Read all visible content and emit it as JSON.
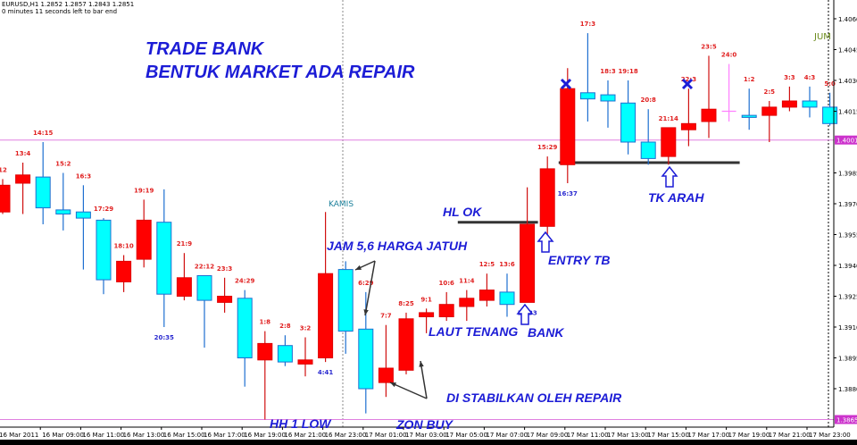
{
  "header": {
    "symbol_line": "EURUSD,H1  1.2852 1.2857 1.2843 1.2851",
    "timer_line": "0 minutes 11 seconds left to bar end"
  },
  "annotations": {
    "title1": "TRADE BANK",
    "title2": "BENTUK MARKET ADA REPAIR",
    "jam": "JAM 5,6 HARGA JATUH",
    "hl_ok": "HL OK",
    "entry_tb": "ENTRY TB",
    "laut_tenang": "LAUT TENANG",
    "bank": "BANK",
    "di_stabilkan": "DI STABILKAN OLEH REPAIR",
    "hh_low": "HH 1 LOW",
    "zon_buy": "ZON BUY",
    "tk_arah": "TK ARAH",
    "kamis": "KAMIS",
    "jum": "JUM"
  },
  "colors": {
    "up_body": "#ff0000",
    "down_body": "#00ffff",
    "down_wick": "#1e6fd0",
    "up_wick": "#d01010",
    "doji": "#ff80ff",
    "annotation": "#1c1cd6",
    "price_line": "#e080e0"
  },
  "chart_data": {
    "type": "candlestick",
    "symbol": "EURUSD",
    "timeframe": "H1",
    "ylim": [
      1.386,
      1.407
    ],
    "y_ticks": [
      "1.4060",
      "1.4045",
      "1.4030",
      "1.4015",
      "1.3985",
      "1.3970",
      "1.3955",
      "1.3940",
      "1.3925",
      "1.3910",
      "1.3895",
      "1.3880"
    ],
    "x_ticks": [
      "16 Mar 2011",
      "16 Mar 09:00",
      "16 Mar 11:00",
      "16 Mar 13:00",
      "16 Mar 15:00",
      "16 Mar 17:00",
      "16 Mar 19:00",
      "16 Mar 21:00",
      "16 Mar 23:00",
      "17 Mar 01:00",
      "17 Mar 03:00",
      "17 Mar 05:00",
      "17 Mar 07:00",
      "17 Mar 09:00",
      "17 Mar 11:00",
      "17 Mar 13:00",
      "17 Mar 15:00",
      "17 Mar 17:00",
      "17 Mar 19:00",
      "17 Mar 21:00",
      "17 Mar 23:00"
    ],
    "price_lines": [
      {
        "price": 1.4001,
        "label": "1.4001"
      },
      {
        "price": 1.3865,
        "label": "1.3865"
      }
    ],
    "support_lines": [
      {
        "price": 1.3961,
        "from_candle": 23,
        "to_candle": 26
      },
      {
        "price": 1.399,
        "from_candle": 28,
        "to_candle": 36
      }
    ],
    "candles": [
      {
        "o": 1.3966,
        "h": 1.3982,
        "l": 1.3965,
        "c": 1.3979,
        "label": "12",
        "label_pos": "above"
      },
      {
        "o": 1.398,
        "h": 1.399,
        "l": 1.3965,
        "c": 1.3984,
        "label": "13:4",
        "label_pos": "above"
      },
      {
        "o": 1.3983,
        "h": 1.4,
        "l": 1.396,
        "c": 1.3968,
        "label": "14:15",
        "label_pos": "above"
      },
      {
        "o": 1.3967,
        "h": 1.3985,
        "l": 1.3957,
        "c": 1.3965,
        "label": "15:2",
        "label_pos": "above"
      },
      {
        "o": 1.3966,
        "h": 1.3979,
        "l": 1.3938,
        "c": 1.3963,
        "label": "16:3",
        "label_pos": "above"
      },
      {
        "o": 1.3962,
        "h": 1.3963,
        "l": 1.3926,
        "c": 1.3933,
        "label": "17:29",
        "label_pos": "above"
      },
      {
        "o": 1.3932,
        "h": 1.3945,
        "l": 1.3927,
        "c": 1.3942,
        "label": "18:10",
        "label_pos": "above"
      },
      {
        "o": 1.3943,
        "h": 1.3972,
        "l": 1.3939,
        "c": 1.3962,
        "label": "19:19",
        "label_pos": "above"
      },
      {
        "o": 1.3961,
        "h": 1.3977,
        "l": 1.391,
        "c": 1.3926,
        "label": "20:35",
        "label_pos": "below"
      },
      {
        "o": 1.3925,
        "h": 1.3946,
        "l": 1.3923,
        "c": 1.3934,
        "label": "21:9",
        "label_pos": "above"
      },
      {
        "o": 1.3935,
        "h": 1.3935,
        "l": 1.39,
        "c": 1.3923,
        "label": "22:12",
        "label_pos": "above"
      },
      {
        "o": 1.3922,
        "h": 1.3934,
        "l": 1.3917,
        "c": 1.3925,
        "label": "23:3",
        "label_pos": "above"
      },
      {
        "o": 1.3924,
        "h": 1.3928,
        "l": 1.3881,
        "c": 1.3895,
        "label": "24:29",
        "label_pos": "above"
      },
      {
        "o": 1.3894,
        "h": 1.3908,
        "l": 1.3865,
        "c": 1.3902,
        "label": "1:8",
        "label_pos": "above"
      },
      {
        "o": 1.3901,
        "h": 1.3906,
        "l": 1.3891,
        "c": 1.3893,
        "label": "2:8",
        "label_pos": "above"
      },
      {
        "o": 1.3892,
        "h": 1.3905,
        "l": 1.3886,
        "c": 1.3894,
        "label": "3:2",
        "label_pos": "above"
      },
      {
        "o": 1.3895,
        "h": 1.3966,
        "l": 1.3893,
        "c": 1.3936,
        "label": "4:41",
        "label_pos": "below"
      },
      {
        "o": 1.3938,
        "h": 1.3942,
        "l": 1.3897,
        "c": 1.3908,
        "label": "",
        "label_pos": "above"
      },
      {
        "o": 1.3909,
        "h": 1.3927,
        "l": 1.3868,
        "c": 1.388,
        "label": "6:29",
        "label_pos": "above"
      },
      {
        "o": 1.3883,
        "h": 1.3911,
        "l": 1.3876,
        "c": 1.389,
        "label": "7:7",
        "label_pos": "above"
      },
      {
        "o": 1.3889,
        "h": 1.3917,
        "l": 1.3887,
        "c": 1.3914,
        "label": "8:25",
        "label_pos": "above"
      },
      {
        "o": 1.3915,
        "h": 1.3919,
        "l": 1.3907,
        "c": 1.3917,
        "label": "9:1",
        "label_pos": "above"
      },
      {
        "o": 1.3915,
        "h": 1.3927,
        "l": 1.3913,
        "c": 1.3921,
        "label": "10:6",
        "label_pos": "above"
      },
      {
        "o": 1.392,
        "h": 1.3928,
        "l": 1.3913,
        "c": 1.3924,
        "label": "11:4",
        "label_pos": "above"
      },
      {
        "o": 1.3923,
        "h": 1.3936,
        "l": 1.392,
        "c": 1.3928,
        "label": "12:5",
        "label_pos": "above"
      },
      {
        "o": 1.3927,
        "h": 1.3936,
        "l": 1.3915,
        "c": 1.3921,
        "label": "13:6",
        "label_pos": "above"
      },
      {
        "o": 1.3922,
        "h": 1.3978,
        "l": 1.3922,
        "c": 1.396,
        "label": "14:33",
        "label_pos": "below"
      },
      {
        "o": 1.3959,
        "h": 1.3993,
        "l": 1.3952,
        "c": 1.3987,
        "label": "15:29",
        "label_pos": "above"
      },
      {
        "o": 1.3989,
        "h": 1.4036,
        "l": 1.398,
        "c": 1.4026,
        "label": "16:37",
        "label_pos": "below"
      },
      {
        "o": 1.4024,
        "h": 1.4053,
        "l": 1.401,
        "c": 1.4021,
        "label": "17:3",
        "label_pos": "above"
      },
      {
        "o": 1.4023,
        "h": 1.403,
        "l": 1.4007,
        "c": 1.402,
        "label": "18:3",
        "label_pos": "above"
      },
      {
        "o": 1.4019,
        "h": 1.403,
        "l": 1.3994,
        "c": 1.4,
        "label": "19:18",
        "label_pos": "above"
      },
      {
        "o": 1.4,
        "h": 1.4016,
        "l": 1.3989,
        "c": 1.3992,
        "label": "20:8",
        "label_pos": "above"
      },
      {
        "o": 1.3993,
        "h": 1.4007,
        "l": 1.3989,
        "c": 1.4007,
        "label": "21:14",
        "label_pos": "above"
      },
      {
        "o": 1.4006,
        "h": 1.4026,
        "l": 1.3998,
        "c": 1.4009,
        "label": "22:3",
        "label_pos": "above"
      },
      {
        "o": 1.401,
        "h": 1.4042,
        "l": 1.4002,
        "c": 1.4016,
        "label": "23:5",
        "label_pos": "above"
      },
      {
        "o": 1.4015,
        "h": 1.4038,
        "l": 1.401,
        "c": 1.4015,
        "label": "24:0",
        "label_pos": "above"
      },
      {
        "o": 1.4013,
        "h": 1.4026,
        "l": 1.4006,
        "c": 1.4012,
        "label": "1:2",
        "label_pos": "above"
      },
      {
        "o": 1.4013,
        "h": 1.402,
        "l": 1.4,
        "c": 1.4017,
        "label": "2:5",
        "label_pos": "above"
      },
      {
        "o": 1.4017,
        "h": 1.4027,
        "l": 1.4015,
        "c": 1.402,
        "label": "3:3",
        "label_pos": "above"
      },
      {
        "o": 1.402,
        "h": 1.4027,
        "l": 1.4012,
        "c": 1.4017,
        "label": "4:3",
        "label_pos": "above"
      },
      {
        "o": 1.4017,
        "h": 1.4024,
        "l": 1.4008,
        "c": 1.4009,
        "label": "5:0",
        "label_pos": "above"
      }
    ]
  }
}
